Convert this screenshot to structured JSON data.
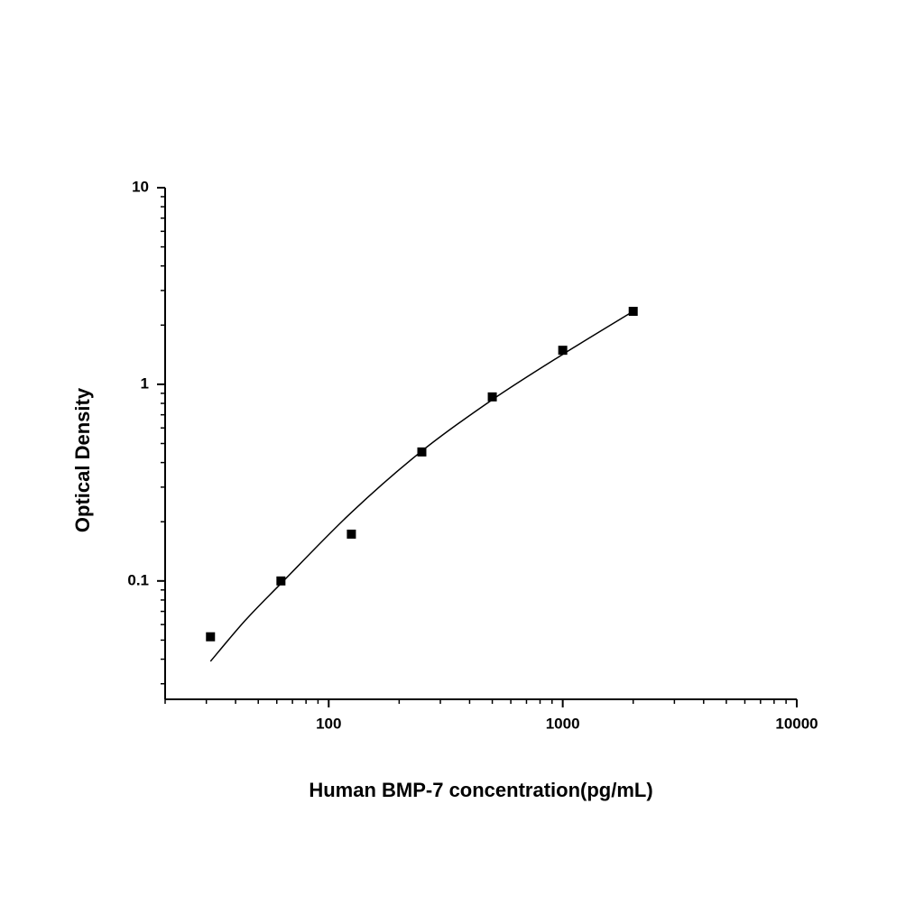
{
  "chart_data": {
    "type": "scatter",
    "x_label": "Human BMP-7 concentration(pg/mL)",
    "y_label": "Optical Density",
    "xlog": true,
    "ylog": true,
    "xlim": [
      20,
      10000
    ],
    "ylim": [
      0.025,
      10
    ],
    "xticks": [
      100,
      1000,
      10000
    ],
    "xminorticks": [
      20,
      30,
      40,
      50,
      60,
      70,
      80,
      90,
      200,
      300,
      400,
      500,
      600,
      700,
      800,
      900,
      2000,
      3000,
      4000,
      5000,
      6000,
      7000,
      8000,
      9000
    ],
    "yticks": [
      0.1,
      1,
      10
    ],
    "yminorticks": [
      0.03,
      0.04,
      0.05,
      0.06,
      0.07,
      0.08,
      0.09,
      0.2,
      0.3,
      0.4,
      0.5,
      0.6,
      0.7,
      0.8,
      0.9,
      2,
      3,
      4,
      5,
      6,
      7,
      8,
      9
    ],
    "series": [
      {
        "kind": "points",
        "color": "#000000",
        "x": [
          31.25,
          62.5,
          125,
          250,
          500,
          1000,
          2000
        ],
        "values": [
          0.052,
          0.1,
          0.173,
          0.453,
          0.863,
          1.49,
          2.35
        ]
      },
      {
        "kind": "curve",
        "color": "#000000",
        "x": [
          31.25,
          44,
          62.5,
          125,
          250,
          500,
          1000,
          2000
        ],
        "values": [
          0.039,
          0.063,
          0.097,
          0.223,
          0.458,
          0.835,
          1.42,
          2.35
        ]
      }
    ]
  }
}
